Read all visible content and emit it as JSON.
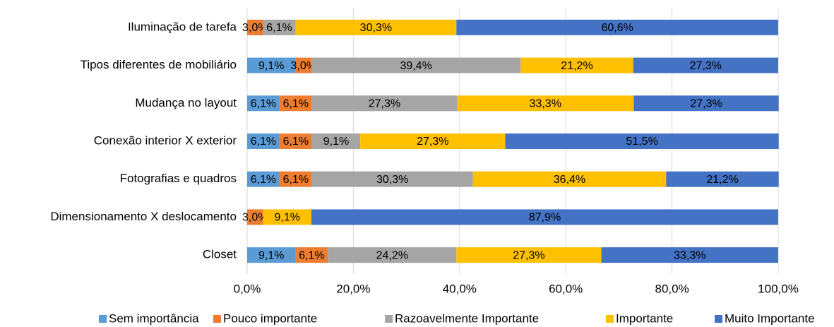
{
  "chart_data": {
    "type": "stacked-bar-horizontal",
    "categories": [
      "Iluminação de tarefa",
      "Tipos diferentes de mobiliário",
      "Mudança no layout",
      "Conexão interior X exterior",
      "Fotografias e quadros",
      "Dimensionamento X deslocamento",
      "Closet"
    ],
    "series": [
      {
        "name": "Sem importância",
        "color": "#5b9bd5",
        "values": [
          null,
          9.1,
          6.1,
          6.1,
          6.1,
          null,
          9.1
        ],
        "value_labels": [
          null,
          "9,1%",
          "6,1%",
          "6,1%",
          "6,1%",
          null,
          "9,1%"
        ]
      },
      {
        "name": "Pouco importante",
        "color": "#ed7d31",
        "values": [
          3.0,
          3.0,
          6.1,
          6.1,
          6.1,
          3.0,
          6.1
        ],
        "value_labels": [
          "3,0%",
          "3,0%",
          "6,1%",
          "6,1%",
          "6,1%",
          "3,0%",
          "6,1%"
        ]
      },
      {
        "name": "Razoavelmente Importante",
        "color": "#a5a5a5",
        "values": [
          6.1,
          39.4,
          27.3,
          9.1,
          30.3,
          null,
          24.2
        ],
        "value_labels": [
          "6,1%",
          "39,4%",
          "27,3%",
          "9,1%",
          "30,3%",
          null,
          "24,2%"
        ]
      },
      {
        "name": "Importante",
        "color": "#ffc000",
        "values": [
          30.3,
          21.2,
          33.3,
          27.3,
          36.4,
          9.1,
          27.3
        ],
        "value_labels": [
          "30,3%",
          "21,2%",
          "33,3%",
          "27,3%",
          "36,4%",
          "9,1%",
          "27,3%"
        ]
      },
      {
        "name": "Muito Importante",
        "color": "#4472c4",
        "values": [
          60.6,
          27.3,
          27.3,
          51.5,
          21.2,
          87.9,
          33.3
        ],
        "value_labels": [
          "60,6%",
          "27,3%",
          "27,3%",
          "51,5%",
          "21,2%",
          "87,9%",
          "33,3%"
        ]
      }
    ],
    "xlim": [
      0,
      100
    ],
    "xticks": [
      {
        "value": 0,
        "label": "0,0%"
      },
      {
        "value": 20,
        "label": "20,0%"
      },
      {
        "value": 40,
        "label": "40,0%"
      },
      {
        "value": 60,
        "label": "60,0%"
      },
      {
        "value": 80,
        "label": "80,0%"
      },
      {
        "value": 100,
        "label": "100,0%"
      }
    ],
    "grid": true,
    "legend": "bottom"
  }
}
